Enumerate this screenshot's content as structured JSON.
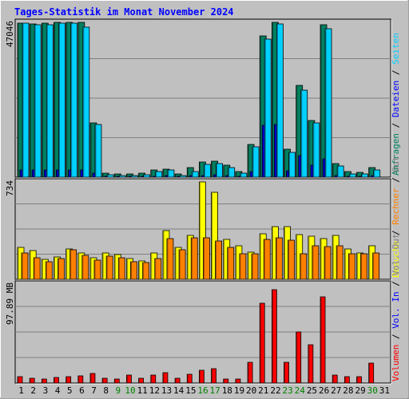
{
  "chart_data": {
    "type": "bar",
    "title": "Tages-Statistik im Monat November 2024",
    "days": [
      "1",
      "2",
      "3",
      "4",
      "5",
      "6",
      "7",
      "8",
      "9",
      "10",
      "11",
      "12",
      "13",
      "14",
      "15",
      "16",
      "17",
      "18",
      "19",
      "20",
      "21",
      "22",
      "23",
      "24",
      "25",
      "26",
      "27",
      "28",
      "29",
      "30",
      "31"
    ],
    "weekend_days": [
      "9",
      "10",
      "16",
      "17",
      "23",
      "24",
      "30"
    ],
    "colors": {
      "background": "#c0c0c0",
      "weekday_label": "#000000",
      "weekend_label": "#008000",
      "title": "#0000ff",
      "anfragen": "#008060",
      "dateien": "#0000ff",
      "seiten": "#00d0ff",
      "besuche": "#ffff00",
      "rechner": "#ff8000",
      "volumen": "#ff0000"
    },
    "panels": [
      {
        "name": "hits",
        "max_label": "47046",
        "ymax": 47046,
        "legend": [
          {
            "text": "Anfragen",
            "color": "#008060"
          },
          {
            "text": "Dateien",
            "color": "#0000ff"
          },
          {
            "text": "Seiten",
            "color": "#00d0ff"
          }
        ],
        "series": [
          {
            "name": "Anfragen",
            "color": "#008060",
            "values": [
              46900,
              46500,
              46700,
              47000,
              47046,
              47046,
              16600,
              1200,
              1000,
              1000,
              1100,
              2100,
              2500,
              1000,
              2800,
              4700,
              4900,
              3600,
              1600,
              10000,
              42900,
              47000,
              8500,
              27800,
              17100,
              46200,
              4200,
              1700,
              1500,
              2800,
              0
            ]
          },
          {
            "name": "Dateien",
            "color": "#0000ff",
            "values": [
              2200,
              2100,
              2100,
              2200,
              2300,
              2200,
              1200,
              200,
              200,
              200,
              200,
              300,
              400,
              200,
              500,
              600,
              700,
              500,
              300,
              1800,
              15700,
              16000,
              2000,
              6500,
              3600,
              5500,
              600,
              300,
              300,
              400,
              0
            ]
          },
          {
            "name": "Seiten",
            "color": "#00d0ff",
            "values": [
              46700,
              46200,
              46300,
              46700,
              46700,
              45700,
              16000,
              800,
              600,
              600,
              700,
              1700,
              2100,
              600,
              1700,
              4000,
              4100,
              2900,
              1200,
              9300,
              42000,
              46600,
              7600,
              26400,
              16500,
              45000,
              3300,
              1000,
              1000,
              2300,
              0
            ]
          }
        ]
      },
      {
        "name": "visits",
        "max_label": "734",
        "ymax": 734,
        "legend": [
          {
            "text": "Besuche",
            "color": "#ffff00"
          },
          {
            "text": "Rechner",
            "color": "#ff8000"
          },
          {
            "text": "Out",
            "color": "#808080"
          }
        ],
        "series": [
          {
            "name": "Besuche",
            "color": "#ffff00",
            "values": [
              240,
              215,
              150,
              170,
              230,
              200,
              165,
              200,
              185,
              155,
              140,
              200,
              370,
              240,
              330,
              734,
              655,
              300,
              250,
              205,
              340,
              395,
              400,
              335,
              325,
              305,
              330,
              230,
              200,
              255,
              0
            ]
          },
          {
            "name": "Rechner",
            "color": "#ff8000",
            "values": [
              200,
              165,
              135,
              155,
              225,
              180,
              145,
              175,
              160,
              135,
              125,
              155,
              305,
              225,
              310,
              310,
              290,
              240,
              195,
              190,
              300,
              310,
              295,
              190,
              255,
              245,
              255,
              190,
              195,
              200,
              0
            ]
          }
        ]
      },
      {
        "name": "volume",
        "max_label": "97.89 MB",
        "ymax": 97.89,
        "legend": [
          {
            "text": "Volumen",
            "color": "#ff0000"
          },
          {
            "text": "Vol. In",
            "color": "#0000ff"
          },
          {
            "text": "Vol. Out",
            "color": "#808080"
          }
        ],
        "series": [
          {
            "name": "Volumen",
            "color": "#ff0000",
            "values": [
              6.2,
              4.8,
              4.3,
              5.7,
              6.3,
              6.9,
              9.3,
              4.8,
              4.0,
              7.8,
              4.8,
              7.5,
              9.9,
              4.8,
              8.5,
              12.4,
              14.3,
              4.3,
              4.3,
              20.6,
              79.3,
              92.1,
              20.4,
              50.4,
              37.6,
              85.2,
              7.8,
              6.6,
              6.4,
              19.7,
              0
            ]
          }
        ]
      }
    ]
  }
}
